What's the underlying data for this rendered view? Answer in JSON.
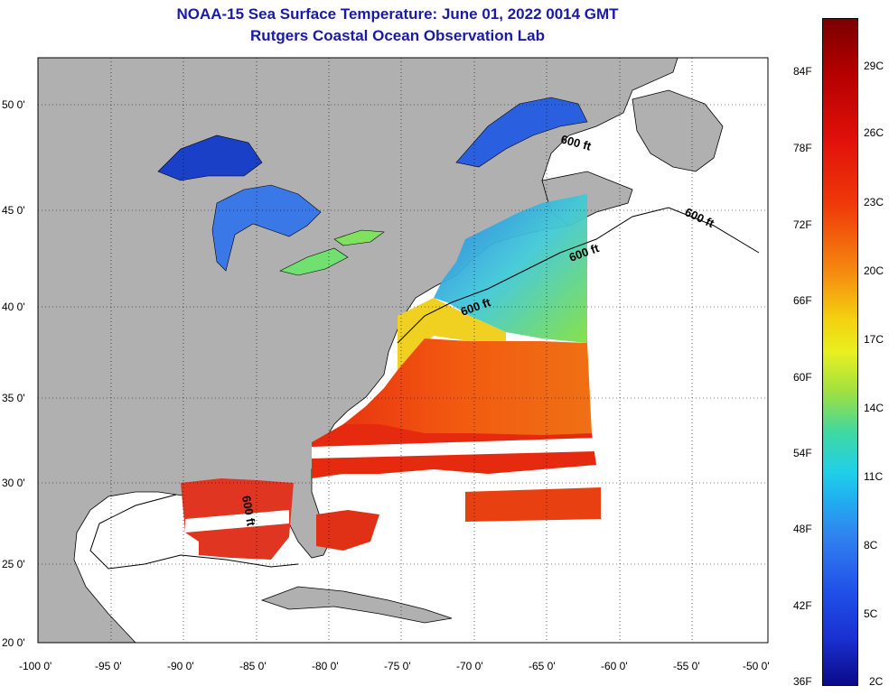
{
  "title": "NOAA-15 Sea Surface Temperature:  June 01, 2022 0014 GMT",
  "subtitle": "Rutgers Coastal Ocean Observation Lab",
  "lon_labels": [
    "-100 0'",
    "-95 0'",
    "-90 0'",
    "-85 0'",
    "-80 0'",
    "-75 0'",
    "-70 0'",
    "-65 0'",
    "-60 0'",
    "-55 0'",
    "-50 0'"
  ],
  "lat_labels": [
    "50 0'",
    "45 0'",
    "40 0'",
    "35 0'",
    "30 0'",
    "25 0'",
    "20 0'"
  ],
  "depth_label": "600 ft",
  "colorbar": {
    "fahrenheit": [
      "84F",
      "78F",
      "72F",
      "66F",
      "60F",
      "54F",
      "48F",
      "42F",
      "36F"
    ],
    "celsius": [
      "29C",
      "26C",
      "23C",
      "20C",
      "17C",
      "14C",
      "11C",
      "8C",
      "5C",
      "2C"
    ]
  },
  "colors": {
    "title": "#1a1aa8",
    "land": "#b0b0b0",
    "ocean": "#ffffff"
  }
}
